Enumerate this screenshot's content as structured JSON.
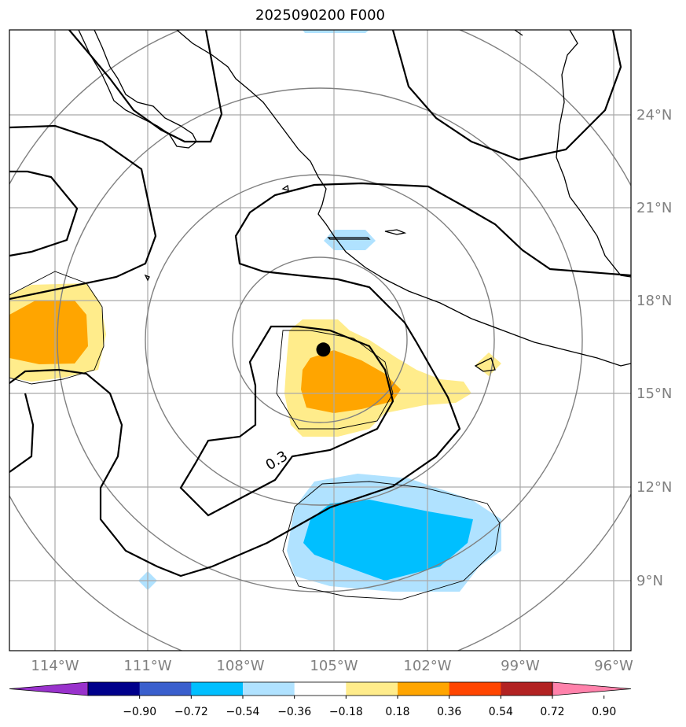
{
  "title": "2025090200 F000",
  "map": {
    "lon_labels": [
      "114°W",
      "111°W",
      "108°W",
      "105°W",
      "102°W",
      "99°W",
      "96°W"
    ],
    "lat_labels": [
      "24°N",
      "21°N",
      "18°N",
      "15°N",
      "12°N",
      "9°N"
    ],
    "contour_label": "0.3",
    "extent": {
      "lon_min": -115.5,
      "lon_max": -95.5,
      "lat_min": 7.0,
      "lat_max": 27.0
    },
    "center_marker": {
      "lon": -105.4,
      "lat": 16.7
    }
  },
  "colorbar": {
    "ticks": [
      "−0.90",
      "−0.72",
      "−0.54",
      "−0.36",
      "−0.18",
      "0.18",
      "0.36",
      "0.54",
      "0.72",
      "0.90"
    ],
    "colors": [
      "#9932CC",
      "#00008B",
      "#3A5FCD",
      "#00BFFF",
      "#B0E2FF",
      "#FFFFFF",
      "#FFEC8B",
      "#FFA500",
      "#FF4500",
      "#B22222",
      "#FF82AB"
    ]
  }
}
